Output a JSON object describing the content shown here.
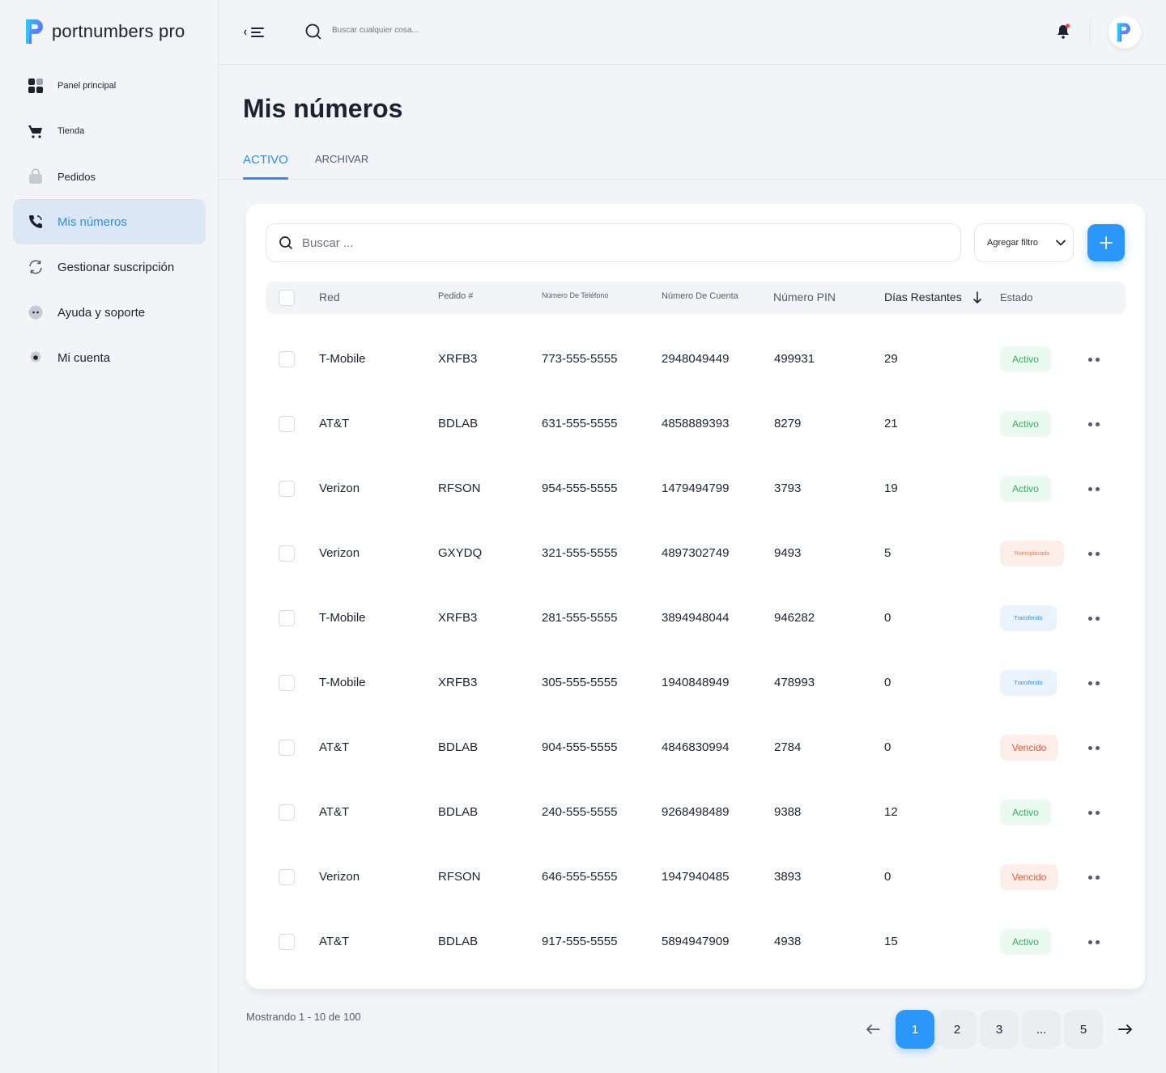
{
  "brand": {
    "name": "portnumbers pro",
    "accent": "#2b8ef0"
  },
  "sidebar": {
    "items": [
      {
        "label": "Panel principal",
        "icon": "grid-icon"
      },
      {
        "label": "Tienda",
        "icon": "cart-icon"
      },
      {
        "label": "Pedidos",
        "icon": "bag-icon"
      },
      {
        "label": "Mis números",
        "icon": "phone-icon",
        "active": true
      },
      {
        "label": "Gestionar suscripción",
        "icon": "refresh-icon"
      },
      {
        "label": "Ayuda y soporte",
        "icon": "chat-icon"
      },
      {
        "label": "Mi cuenta",
        "icon": "settings-icon"
      }
    ]
  },
  "topbar": {
    "search_placeholder": "Buscar cualquier cosa..."
  },
  "page": {
    "title": "Mis números"
  },
  "tabs": [
    {
      "label": "ACTIVO"
    },
    {
      "label": "ARCHIVAR"
    }
  ],
  "toolbar": {
    "search_placeholder": "Buscar ...",
    "filter_label": "Agregar filtro"
  },
  "table": {
    "columns": [
      "Red",
      "Pedido #",
      "Número De Teléfono",
      "Número De Cuenta",
      "Número PIN",
      "Días Restantes",
      "Estado"
    ],
    "sort": {
      "column": "Días Restantes",
      "direction": "desc"
    },
    "rows": [
      {
        "red": "T-Mobile",
        "pedido": "XRFB3",
        "telefono": "773-555-5555",
        "cuenta": "2948049449",
        "pin": "499931",
        "dias": "29",
        "estado": "Activo"
      },
      {
        "red": "AT&T",
        "pedido": "BDLAB",
        "telefono": "631-555-5555",
        "cuenta": "4858889393",
        "pin": "8279",
        "dias": "21",
        "estado": "Activo"
      },
      {
        "red": "Verizon",
        "pedido": "RFSON",
        "telefono": "954-555-5555",
        "cuenta": "1479494799",
        "pin": "3793",
        "dias": "19",
        "estado": "Activo"
      },
      {
        "red": "Verizon",
        "pedido": "GXYDQ",
        "telefono": "321-555-5555",
        "cuenta": "4897302749",
        "pin": "9493",
        "dias": "5",
        "estado": "Reemplazado"
      },
      {
        "red": "T-Mobile",
        "pedido": "XRFB3",
        "telefono": "281-555-5555",
        "cuenta": "3894948044",
        "pin": "946282",
        "dias": "0",
        "estado": "Transferido"
      },
      {
        "red": "T-Mobile",
        "pedido": "XRFB3",
        "telefono": "305-555-5555",
        "cuenta": "1940848949",
        "pin": "478993",
        "dias": "0",
        "estado": "Transferido"
      },
      {
        "red": "AT&T",
        "pedido": "BDLAB",
        "telefono": "904-555-5555",
        "cuenta": "4846830994",
        "pin": "2784",
        "dias": "0",
        "estado": "Vencido"
      },
      {
        "red": "AT&T",
        "pedido": "BDLAB",
        "telefono": "240-555-5555",
        "cuenta": "9268498489",
        "pin": "9388",
        "dias": "12",
        "estado": "Activo"
      },
      {
        "red": "Verizon",
        "pedido": "RFSON",
        "telefono": "646-555-5555",
        "cuenta": "1947940485",
        "pin": "3893",
        "dias": "0",
        "estado": "Vencido"
      },
      {
        "red": "AT&T",
        "pedido": "BDLAB",
        "telefono": "917-555-5555",
        "cuenta": "5894947909",
        "pin": "4938",
        "dias": "15",
        "estado": "Activo"
      }
    ]
  },
  "status_colors": {
    "Activo": "#28b463",
    "Reemplazado": "#f27a4e",
    "Transferido": "#2b8ef0",
    "Vencido": "#e8593a"
  },
  "pagination": {
    "showing": "Mostrando 1 - 10 de 100",
    "pages": [
      "1",
      "2",
      "3",
      "...",
      "5"
    ],
    "current": "1"
  }
}
